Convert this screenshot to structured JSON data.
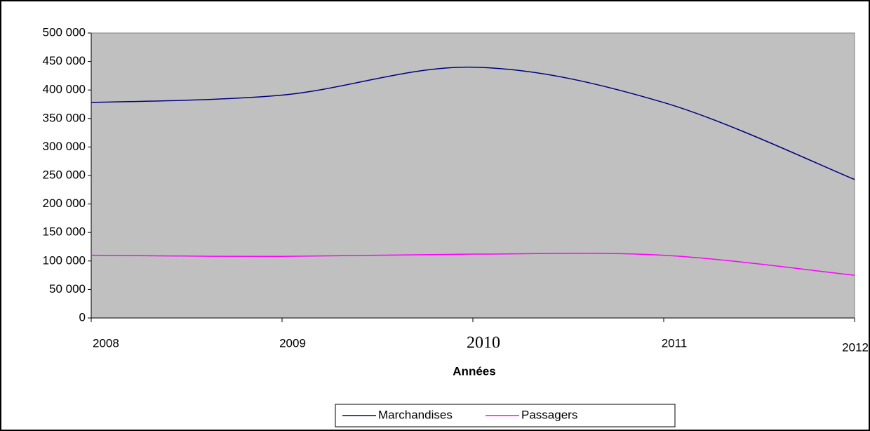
{
  "chart_data": {
    "type": "line",
    "x_label": "Années",
    "x": [
      2008,
      2009,
      2010,
      2011,
      2012
    ],
    "series": [
      {
        "name": "Marchandises",
        "color": "#000080",
        "values": [
          378000,
          391000,
          440000,
          378000,
          243000
        ]
      },
      {
        "name": "Passagers",
        "color": "#ff00ff",
        "values": [
          110000,
          108000,
          112000,
          110000,
          75000
        ]
      }
    ],
    "xlim": [
      2008,
      2012
    ],
    "xticks": [
      2008,
      2009,
      2010,
      2011,
      2012
    ],
    "ylim": [
      0,
      500000
    ],
    "yticks": [
      0,
      {
        "value": 50000,
        "label": "50 000"
      },
      {
        "value": 100000,
        "label": "100 000"
      },
      {
        "value": 150000,
        "label": "150 000"
      },
      {
        "value": 200000,
        "label": "200 000"
      },
      {
        "value": 250000,
        "label": "250 000"
      },
      {
        "value": 300000,
        "label": "300 000"
      },
      {
        "value": 350000,
        "label": "350 000"
      },
      {
        "value": 400000,
        "label": "400 000"
      },
      {
        "value": 450000,
        "label": "450 000"
      },
      {
        "value": 500000,
        "label": "500 000"
      }
    ],
    "plot_background": "#c0c0c0",
    "legend": "bottom"
  }
}
